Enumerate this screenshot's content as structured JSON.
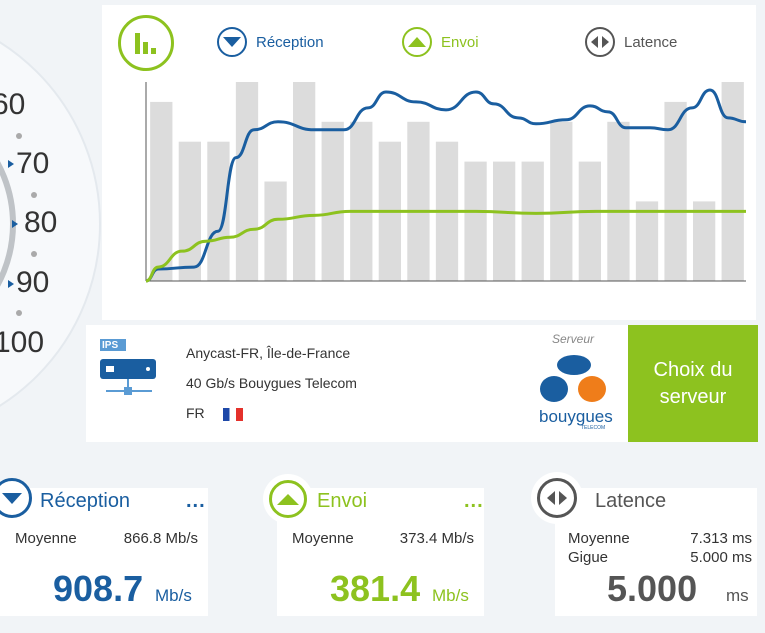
{
  "gauge": {
    "ticks": [
      "60",
      "70",
      "80",
      "90",
      "100"
    ]
  },
  "legend": {
    "reception": "Réception",
    "envoi": "Envoi",
    "latence": "Latence",
    "chart_icon": "bar-chart-icon",
    "reception_icon": "down-arrow-icon",
    "envoi_icon": "up-arrow-icon",
    "latence_icon": "left-right-arrows-icon"
  },
  "colors": {
    "reception": "#1a5ea0",
    "envoi": "#8dc21f",
    "latence": "#555555",
    "bars": "#dcdcdc"
  },
  "chart_data": {
    "type": "line",
    "bars": [
      0.9,
      0.7,
      0.7,
      1.0,
      0.5,
      1.0,
      0.8,
      0.8,
      0.7,
      0.8,
      0.7,
      0.6,
      0.6,
      0.6,
      0.8,
      0.6,
      0.8,
      0.4,
      0.9,
      0.4,
      1.0
    ],
    "series": [
      {
        "key": "reception",
        "values": [
          [
            0,
            0
          ],
          [
            0.02,
            0.06
          ],
          [
            0.08,
            0.07
          ],
          [
            0.12,
            0.25
          ],
          [
            0.15,
            0.62
          ],
          [
            0.18,
            0.76
          ],
          [
            0.22,
            0.8
          ],
          [
            0.28,
            0.76
          ],
          [
            0.33,
            0.76
          ],
          [
            0.37,
            0.87
          ],
          [
            0.4,
            0.95
          ],
          [
            0.45,
            0.9
          ],
          [
            0.5,
            0.86
          ],
          [
            0.55,
            0.95
          ],
          [
            0.58,
            0.89
          ],
          [
            0.62,
            0.82
          ],
          [
            0.65,
            0.79
          ],
          [
            0.7,
            0.81
          ],
          [
            0.74,
            0.88
          ],
          [
            0.77,
            0.85
          ],
          [
            0.8,
            0.77
          ],
          [
            0.84,
            0.77
          ],
          [
            0.87,
            0.76
          ],
          [
            0.91,
            0.87
          ],
          [
            0.94,
            0.96
          ],
          [
            0.97,
            0.82
          ],
          [
            1.0,
            0.8
          ]
        ]
      },
      {
        "key": "envoi",
        "values": [
          [
            0,
            0
          ],
          [
            0.02,
            0.07
          ],
          [
            0.06,
            0.15
          ],
          [
            0.1,
            0.2
          ],
          [
            0.14,
            0.22
          ],
          [
            0.18,
            0.26
          ],
          [
            0.22,
            0.31
          ],
          [
            0.28,
            0.33
          ],
          [
            0.34,
            0.35
          ],
          [
            0.4,
            0.35
          ],
          [
            0.55,
            0.35
          ],
          [
            0.65,
            0.34
          ],
          [
            0.75,
            0.35
          ],
          [
            0.85,
            0.35
          ],
          [
            1.0,
            0.35
          ]
        ]
      }
    ]
  },
  "server": {
    "ips_label": "IPS",
    "ips_icon": "server-icon",
    "location": "Anycast-FR, Île-de-France",
    "provider": "40 Gb/s Bouygues Telecom",
    "country": "FR",
    "flag_icon": "france-flag-icon",
    "serveur_label": "Serveur",
    "logo_text": "bouygues",
    "logo_subtext": "TELECOM",
    "choice_line1": "Choix du",
    "choice_line2": "serveur"
  },
  "cards": {
    "reception": {
      "title": "Réception",
      "more": "...",
      "avg_label": "Moyenne",
      "avg_value": "866.8 Mb/s",
      "big_value": "908.7",
      "unit": "Mb/s"
    },
    "envoi": {
      "title": "Envoi",
      "more": "...",
      "avg_label": "Moyenne",
      "avg_value": "373.4 Mb/s",
      "big_value": "381.4",
      "unit": "Mb/s"
    },
    "latence": {
      "title": "Latence",
      "avg_label": "Moyenne",
      "avg_value": "7.313 ms",
      "jitter_label": "Gigue",
      "jitter_value": "5.000 ms",
      "big_value": "5.000",
      "unit": "ms"
    }
  }
}
